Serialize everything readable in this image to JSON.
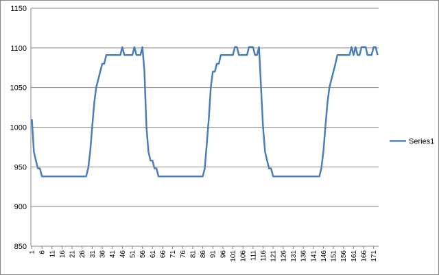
{
  "chart_data": {
    "type": "line",
    "categories": [
      1,
      null,
      null,
      null,
      null,
      6,
      null,
      null,
      null,
      null,
      11,
      null,
      null,
      null,
      null,
      16,
      null,
      null,
      null,
      null,
      21,
      null,
      null,
      null,
      null,
      26,
      null,
      null,
      null,
      null,
      31,
      null,
      null,
      null,
      null,
      36,
      null,
      null,
      null,
      null,
      41,
      null,
      null,
      null,
      null,
      46,
      null,
      null,
      null,
      null,
      51,
      null,
      null,
      null,
      null,
      56,
      null,
      null,
      null,
      null,
      61,
      null,
      null,
      null,
      null,
      66,
      null,
      null,
      null,
      null,
      71,
      null,
      null,
      null,
      null,
      76,
      null,
      null,
      null,
      null,
      81,
      null,
      null,
      null,
      null,
      86,
      null,
      null,
      null,
      null,
      91,
      null,
      null,
      null,
      null,
      96,
      null,
      null,
      null,
      null,
      101,
      null,
      null,
      null,
      null,
      106,
      null,
      null,
      null,
      null,
      111,
      null,
      null,
      null,
      null,
      116,
      null,
      null,
      null,
      null,
      121,
      null,
      null,
      null,
      null,
      126,
      null,
      null,
      null,
      null,
      131,
      null,
      null,
      null,
      null,
      136,
      null,
      null,
      null,
      null,
      141,
      null,
      null,
      null,
      null,
      146,
      null,
      null,
      null,
      null,
      151,
      null,
      null,
      null,
      null,
      156,
      null,
      null,
      null,
      null,
      161,
      null,
      null,
      null,
      null,
      166,
      null,
      null,
      null,
      null,
      171,
      null,
      null
    ],
    "series": [
      {
        "name": "Series1",
        "color": "#4a7ebb",
        "values": [
          1010,
          969,
          958,
          948,
          948,
          938,
          938,
          938,
          938,
          938,
          938,
          938,
          938,
          938,
          938,
          938,
          938,
          938,
          938,
          938,
          938,
          938,
          938,
          938,
          938,
          938,
          938,
          938,
          948,
          969,
          1000,
          1030,
          1050,
          1060,
          1070,
          1080,
          1080,
          1091,
          1091,
          1091,
          1091,
          1091,
          1091,
          1091,
          1091,
          1101,
          1091,
          1091,
          1091,
          1091,
          1091,
          1101,
          1091,
          1091,
          1091,
          1101,
          1070,
          1000,
          969,
          958,
          958,
          948,
          948,
          938,
          938,
          938,
          938,
          938,
          938,
          938,
          938,
          938,
          938,
          938,
          938,
          938,
          938,
          938,
          938,
          938,
          938,
          938,
          938,
          938,
          938,
          938,
          948,
          979,
          1010,
          1050,
          1070,
          1070,
          1080,
          1080,
          1091,
          1091,
          1091,
          1091,
          1091,
          1091,
          1091,
          1101,
          1101,
          1091,
          1091,
          1091,
          1091,
          1091,
          1101,
          1101,
          1101,
          1091,
          1091,
          1101,
          1050,
          1000,
          969,
          958,
          948,
          948,
          938,
          938,
          938,
          938,
          938,
          938,
          938,
          938,
          938,
          938,
          938,
          938,
          938,
          938,
          938,
          938,
          938,
          938,
          938,
          938,
          938,
          938,
          938,
          938,
          948,
          969,
          1000,
          1030,
          1050,
          1060,
          1070,
          1080,
          1091,
          1091,
          1091,
          1091,
          1091,
          1091,
          1091,
          1101,
          1091,
          1101,
          1091,
          1091,
          1101,
          1101,
          1101,
          1091,
          1091,
          1091,
          1101,
          1101,
          1091
        ]
      }
    ],
    "ylim": [
      850,
      1150
    ],
    "yticks": [
      850,
      900,
      950,
      1000,
      1050,
      1100,
      1150
    ],
    "grid": true,
    "legend": "right"
  }
}
